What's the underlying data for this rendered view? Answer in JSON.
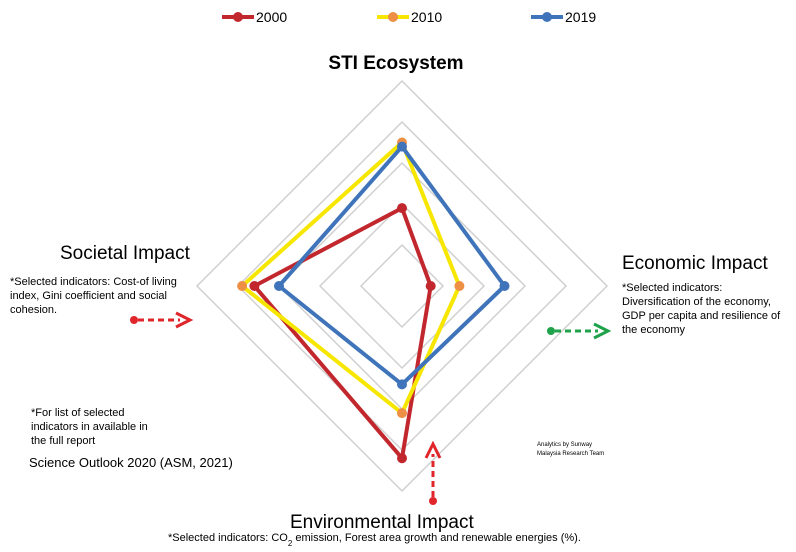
{
  "chart_data": {
    "type": "radar",
    "title": "STI Ecosystem",
    "axes": [
      "STI Ecosystem",
      "Economic Impact",
      "Environmental Impact",
      "Societal Impact"
    ],
    "rmax": 5,
    "grid_levels": 5,
    "series": [
      {
        "name": "2000",
        "color": "#c1272d",
        "values": [
          1.9,
          0.7,
          4.2,
          3.6
        ]
      },
      {
        "name": "2010",
        "color": "#f7e600",
        "marker_color": "#ed8f44",
        "values": [
          3.5,
          1.4,
          3.1,
          3.9
        ]
      },
      {
        "name": "2019",
        "color": "#3f74ba",
        "values": [
          3.4,
          2.5,
          2.4,
          3.0
        ]
      }
    ],
    "legend_position": "top-center"
  },
  "labels": {
    "societal": "Societal Impact",
    "economic": "Economic Impact",
    "environmental": "Environmental Impact"
  },
  "notes": {
    "societal": [
      "*Selected indicators: Cost-of living",
      "index, Gini coefficient and social",
      "cohesion."
    ],
    "economic": [
      "*Selected indicators:",
      "Diversification of the economy,",
      "GDP per capita and resilience of",
      "the economy"
    ],
    "environmental_prefix": "*Selected indicators: CO",
    "environmental_sub": "2",
    "environmental_suffix": " emission, Forest area growth and renewable energies (%).",
    "list": [
      "*For list of selected",
      "indicators in available in",
      "the full report"
    ],
    "source": "Science Outlook 2020 (ASM, 2021)",
    "credit": [
      "Analytics by Sunway",
      "Malaysia Research Team"
    ]
  },
  "colors": {
    "arrow_red": "#e0262b",
    "arrow_green": "#1ea24a",
    "grid": "#d0d0d0"
  }
}
